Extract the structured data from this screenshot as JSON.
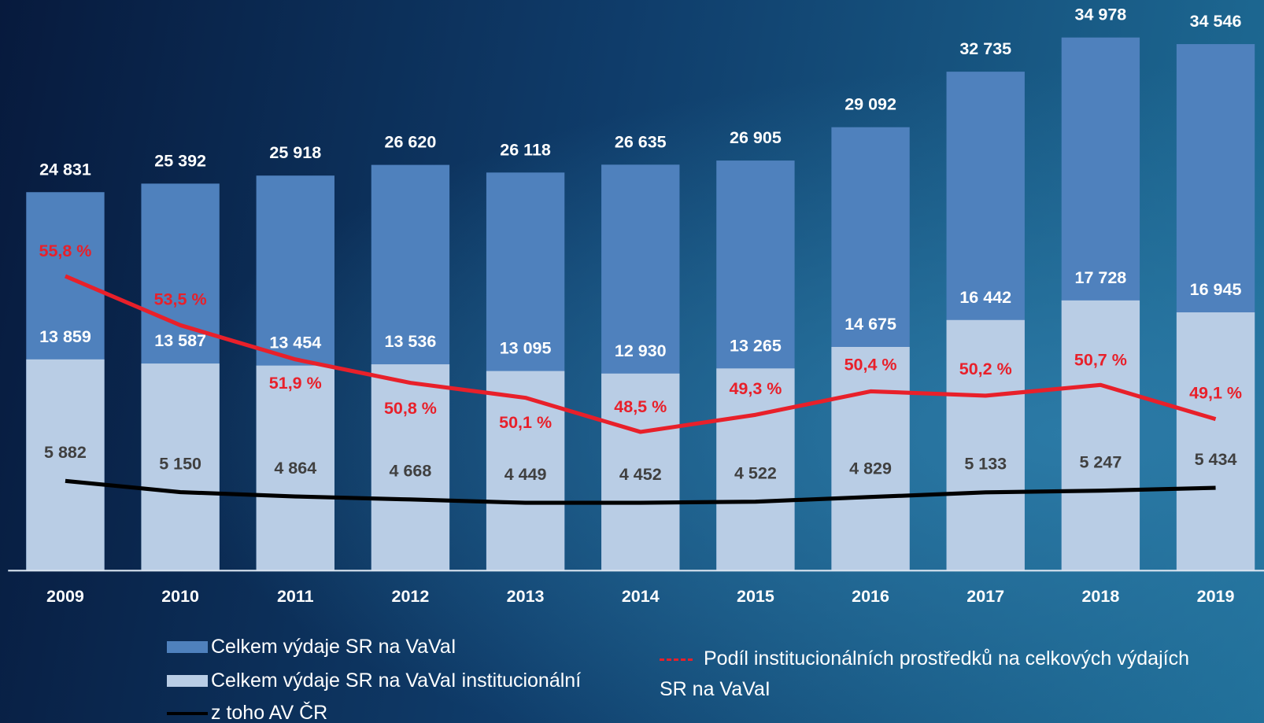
{
  "chart_data": {
    "type": "bar",
    "categories": [
      "2009",
      "2010",
      "2011",
      "2012",
      "2013",
      "2014",
      "2015",
      "2016",
      "2017",
      "2018",
      "2019"
    ],
    "series": [
      {
        "name": "Celkem výdaje SR na VaVaI",
        "type": "bar",
        "color": "#4f81bd",
        "values": [
          24831,
          25392,
          25918,
          26620,
          26118,
          26635,
          26905,
          29092,
          32735,
          34978,
          34546
        ],
        "value_labels": [
          "24 831",
          "25 392",
          "25 918",
          "26 620",
          "26 118",
          "26 635",
          "26 905",
          "29 092",
          "32 735",
          "34 978",
          "34 546"
        ]
      },
      {
        "name": "Celkem výdaje SR na VaVaI institucionální",
        "type": "bar",
        "color": "#b9cde5",
        "values": [
          13859,
          13587,
          13454,
          13536,
          13095,
          12930,
          13265,
          14675,
          16442,
          17728,
          16945
        ],
        "value_labels": [
          "13 859",
          "13 587",
          "13 454",
          "13 536",
          "13 095",
          "12 930",
          "13 265",
          "14 675",
          "16 442",
          "17 728",
          "16 945"
        ]
      },
      {
        "name": "z toho AV ČR",
        "type": "line",
        "color": "#000000",
        "values": [
          5882,
          5150,
          4864,
          4668,
          4449,
          4452,
          4522,
          4829,
          5133,
          5247,
          5434
        ],
        "value_labels": [
          "5 882",
          "5 150",
          "4 864",
          "4 668",
          "4 449",
          "4 452",
          "4 522",
          "4 829",
          "5 133",
          "5 247",
          "5 434"
        ]
      },
      {
        "name": "Podíl institucionálních prostředků na celkových výdajích SR na VaVaI",
        "type": "line",
        "axis": "y2",
        "color": "#e8202a",
        "values": [
          55.8,
          53.5,
          51.9,
          50.8,
          50.1,
          48.5,
          49.3,
          50.4,
          50.2,
          50.7,
          49.1
        ],
        "value_labels": [
          "55,8 %",
          "53,5 %",
          "51,9 %",
          "50,8 %",
          "50,1 %",
          "48,5 %",
          "49,3 %",
          "50,4 %",
          "50,2 %",
          "50,7 %",
          "49,1 %"
        ]
      }
    ],
    "ylim": [
      0,
      35000
    ],
    "y2lim": [
      42,
      67
    ]
  }
}
